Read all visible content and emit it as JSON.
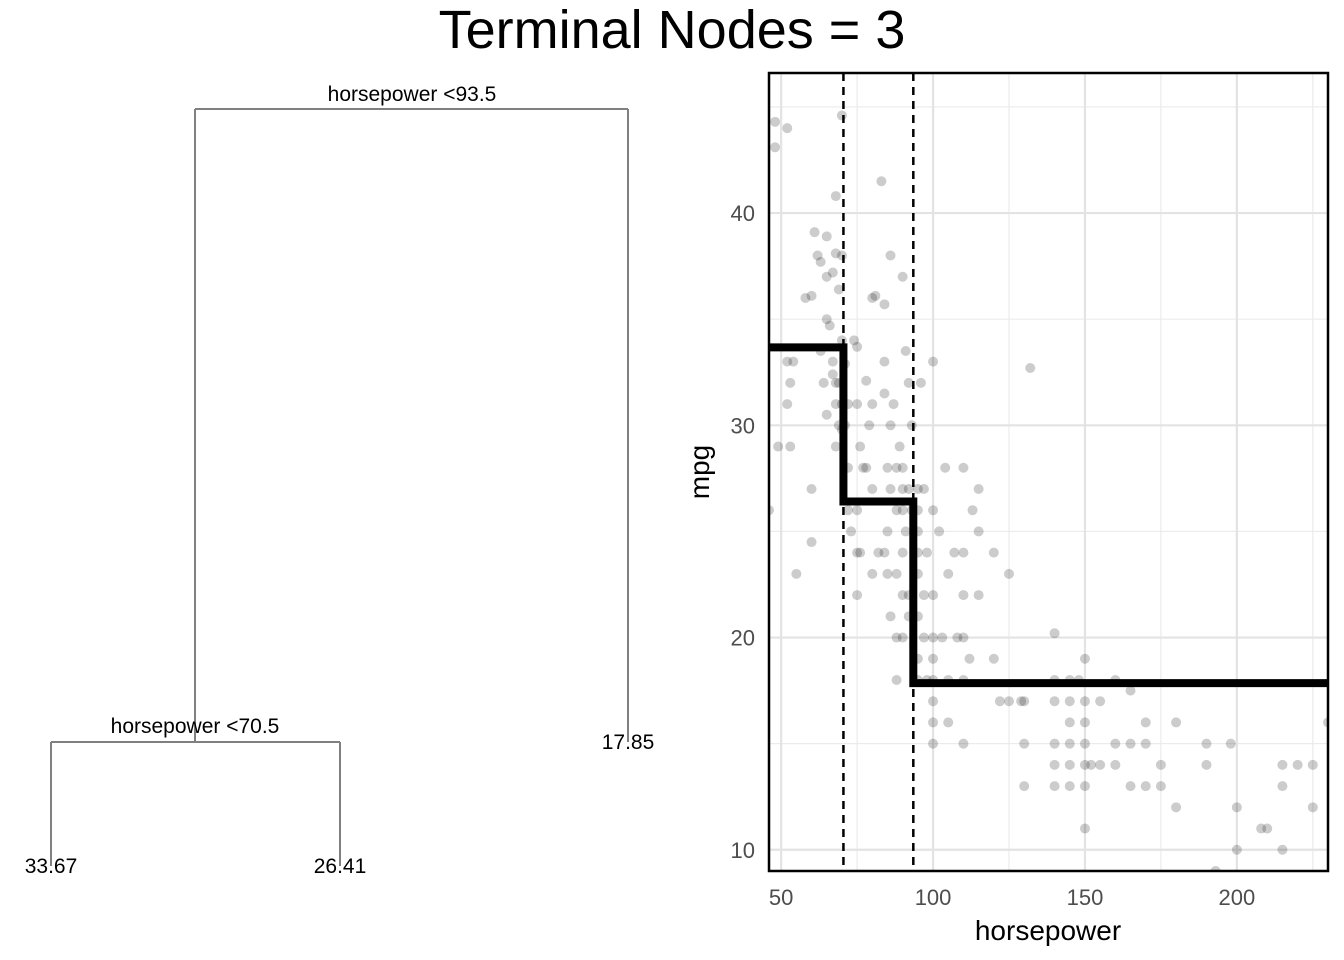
{
  "title": "Terminal Nodes = 3",
  "tree": {
    "root_split": "horsepower <93.5",
    "left_split": "horsepower <70.5",
    "leaves": [
      "33.67",
      "26.41",
      "17.85"
    ]
  },
  "chart_data": {
    "type": "scatter",
    "title": "Terminal Nodes = 3",
    "xlabel": "horsepower",
    "ylabel": "mpg",
    "xlim": [
      46,
      230
    ],
    "ylim": [
      9,
      46.6
    ],
    "x_ticks": [
      50,
      100,
      150,
      200
    ],
    "y_ticks": [
      10,
      20,
      30,
      40
    ],
    "grid": true,
    "split_lines": [
      70.5,
      93.5
    ],
    "step_fit": [
      {
        "x0": 46,
        "x1": 70.5,
        "y": 33.67
      },
      {
        "x0": 70.5,
        "x1": 93.5,
        "y": 26.41
      },
      {
        "x0": 93.5,
        "x1": 230,
        "y": 17.85
      }
    ],
    "points": [
      [
        48,
        43.1
      ],
      [
        48,
        44.3
      ],
      [
        49,
        29
      ],
      [
        52,
        33
      ],
      [
        52,
        44
      ],
      [
        53,
        32
      ],
      [
        53,
        29
      ],
      [
        54,
        33
      ],
      [
        52,
        31
      ],
      [
        46,
        26
      ],
      [
        55,
        23
      ],
      [
        58,
        36
      ],
      [
        60,
        36.1
      ],
      [
        61,
        39.1
      ],
      [
        62,
        38
      ],
      [
        63,
        37.7
      ],
      [
        65,
        37
      ],
      [
        65,
        35
      ],
      [
        66,
        34.7
      ],
      [
        67,
        37.2
      ],
      [
        67,
        33
      ],
      [
        68,
        40.8
      ],
      [
        68,
        32
      ],
      [
        68,
        31
      ],
      [
        68,
        38.1
      ],
      [
        69,
        36.4
      ],
      [
        69,
        32
      ],
      [
        70,
        44.6
      ],
      [
        70,
        38
      ],
      [
        70,
        31
      ],
      [
        70,
        29.8
      ],
      [
        65,
        30.5
      ],
      [
        64,
        32
      ],
      [
        60,
        27
      ],
      [
        60,
        24.5
      ],
      [
        63,
        33.5
      ],
      [
        65,
        38.9
      ],
      [
        67,
        32.4
      ],
      [
        69,
        30
      ],
      [
        70,
        34
      ],
      [
        68,
        29
      ],
      [
        71,
        32.9
      ],
      [
        71,
        30
      ],
      [
        72,
        31
      ],
      [
        72,
        28
      ],
      [
        72,
        26
      ],
      [
        75,
        33.7
      ],
      [
        75,
        31
      ],
      [
        75,
        26
      ],
      [
        75,
        24
      ],
      [
        75,
        22
      ],
      [
        76,
        24
      ],
      [
        76,
        29
      ],
      [
        78,
        32.1
      ],
      [
        78,
        28
      ],
      [
        79,
        30
      ],
      [
        80,
        31
      ],
      [
        80,
        27
      ],
      [
        80,
        23
      ],
      [
        81,
        36.1
      ],
      [
        82,
        24
      ],
      [
        83,
        41.5
      ],
      [
        84,
        35.7
      ],
      [
        84,
        31.5
      ],
      [
        84,
        24
      ],
      [
        85,
        28
      ],
      [
        85,
        25
      ],
      [
        85,
        23
      ],
      [
        86,
        30
      ],
      [
        86,
        27
      ],
      [
        86,
        21
      ],
      [
        88,
        28
      ],
      [
        88,
        26
      ],
      [
        88,
        23
      ],
      [
        88,
        20
      ],
      [
        88,
        18
      ],
      [
        90,
        37
      ],
      [
        90,
        28
      ],
      [
        90,
        27
      ],
      [
        90,
        26
      ],
      [
        90,
        24
      ],
      [
        90,
        22
      ],
      [
        90,
        20
      ],
      [
        91,
        33.5
      ],
      [
        91,
        25
      ],
      [
        92,
        32
      ],
      [
        92,
        27
      ],
      [
        92,
        22
      ],
      [
        92,
        21
      ],
      [
        93,
        30
      ],
      [
        93,
        26
      ],
      [
        86,
        38
      ],
      [
        80,
        36
      ],
      [
        87,
        31
      ],
      [
        89,
        29
      ],
      [
        84,
        33
      ],
      [
        77,
        28
      ],
      [
        73,
        25
      ],
      [
        74,
        34
      ],
      [
        95,
        27
      ],
      [
        95,
        26
      ],
      [
        95,
        25
      ],
      [
        95,
        24
      ],
      [
        95,
        23
      ],
      [
        95,
        21
      ],
      [
        95,
        19
      ],
      [
        95,
        18
      ],
      [
        96,
        32
      ],
      [
        97,
        27
      ],
      [
        97,
        22
      ],
      [
        97,
        20
      ],
      [
        98,
        24
      ],
      [
        98,
        18
      ],
      [
        100,
        33
      ],
      [
        100,
        26
      ],
      [
        100,
        22
      ],
      [
        100,
        20
      ],
      [
        100,
        19
      ],
      [
        100,
        18
      ],
      [
        100,
        17
      ],
      [
        100,
        16
      ],
      [
        100,
        15
      ],
      [
        102,
        25
      ],
      [
        103,
        20
      ],
      [
        104,
        28
      ],
      [
        105,
        23
      ],
      [
        105,
        18
      ],
      [
        105,
        16
      ],
      [
        107,
        24
      ],
      [
        108,
        20
      ],
      [
        110,
        28
      ],
      [
        110,
        24
      ],
      [
        110,
        22
      ],
      [
        110,
        20
      ],
      [
        110,
        18
      ],
      [
        110,
        15
      ],
      [
        112,
        19
      ],
      [
        113,
        26
      ],
      [
        115,
        27
      ],
      [
        115,
        25
      ],
      [
        115,
        22
      ],
      [
        120,
        24
      ],
      [
        120,
        19
      ],
      [
        122,
        17
      ],
      [
        125,
        23
      ],
      [
        125,
        17
      ],
      [
        129,
        17
      ],
      [
        130,
        17
      ],
      [
        130,
        15
      ],
      [
        130,
        13
      ],
      [
        132,
        32.7
      ],
      [
        140,
        20.2
      ],
      [
        140,
        18
      ],
      [
        140,
        17
      ],
      [
        140,
        15
      ],
      [
        140,
        14
      ],
      [
        140,
        13
      ],
      [
        145,
        18
      ],
      [
        145,
        17
      ],
      [
        145,
        16
      ],
      [
        145,
        15
      ],
      [
        145,
        14
      ],
      [
        145,
        13
      ],
      [
        148,
        18
      ],
      [
        150,
        19
      ],
      [
        150,
        17
      ],
      [
        150,
        16
      ],
      [
        150,
        15
      ],
      [
        150,
        14
      ],
      [
        150,
        13
      ],
      [
        150,
        11
      ],
      [
        152,
        14
      ],
      [
        155,
        17
      ],
      [
        155,
        14
      ],
      [
        160,
        18
      ],
      [
        160,
        15
      ],
      [
        160,
        14
      ],
      [
        165,
        17.5
      ],
      [
        165,
        15
      ],
      [
        165,
        13
      ],
      [
        170,
        16
      ],
      [
        170,
        15
      ],
      [
        170,
        13
      ],
      [
        175,
        14
      ],
      [
        175,
        13
      ],
      [
        180,
        16
      ],
      [
        180,
        12
      ],
      [
        190,
        15
      ],
      [
        190,
        14
      ],
      [
        193,
        9
      ],
      [
        198,
        15
      ],
      [
        200,
        12
      ],
      [
        200,
        10
      ],
      [
        208,
        11
      ],
      [
        210,
        11
      ],
      [
        215,
        14
      ],
      [
        215,
        13
      ],
      [
        215,
        10
      ],
      [
        220,
        14
      ],
      [
        225,
        14
      ],
      [
        230,
        16
      ],
      [
        225,
        12
      ]
    ]
  }
}
